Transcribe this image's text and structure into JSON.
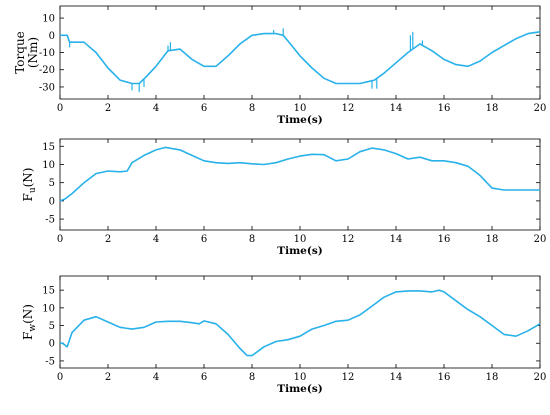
{
  "chart_data": [
    {
      "type": "line",
      "title": "",
      "xlabel": "Time(s)",
      "ylabel_lines": [
        "Torque",
        "(Nm)"
      ],
      "xlim": [
        0,
        20
      ],
      "ylim": [
        -37,
        17
      ],
      "xticks": [
        0,
        2,
        4,
        6,
        8,
        10,
        12,
        14,
        16,
        18,
        20
      ],
      "yticks": [
        10,
        0,
        -10,
        -20,
        -30
      ],
      "grid": false,
      "color": "#29b1e9",
      "series": [
        {
          "x": [
            0,
            0.3,
            0.4,
            1.0,
            1.5,
            2.0,
            2.5,
            3.0,
            3.3,
            3.6,
            4.0,
            4.5,
            5.0,
            5.5,
            6.0,
            6.5,
            7.0,
            7.5,
            8.0,
            8.5,
            9.0,
            9.3,
            9.6,
            10.0,
            10.5,
            11.0,
            11.5,
            12.0,
            12.5,
            12.8,
            13.1,
            13.5,
            14.0,
            14.5,
            15.0,
            15.5,
            16.0,
            16.5,
            17.0,
            17.5,
            18.0,
            18.5,
            19.0,
            19.5,
            20.0
          ],
          "values": [
            0,
            0,
            -4,
            -4,
            -10,
            -19,
            -26,
            -28,
            -28,
            -24,
            -18,
            -9,
            -8,
            -14,
            -18,
            -18,
            -12,
            -5,
            0,
            1,
            1,
            0,
            -5,
            -12,
            -19,
            -25,
            -28,
            -28,
            -28,
            -27,
            -26,
            -22,
            -16,
            -10,
            -5,
            -9,
            -14,
            -17,
            -18,
            -15,
            -10,
            -6,
            -2,
            1,
            2
          ]
        }
      ],
      "spikes": [
        [
          0.4,
          -7
        ],
        [
          3.0,
          -32
        ],
        [
          3.3,
          -33
        ],
        [
          3.5,
          -30
        ],
        [
          4.5,
          -6
        ],
        [
          4.6,
          -4
        ],
        [
          8.9,
          3
        ],
        [
          9.3,
          4
        ],
        [
          13.0,
          -31
        ],
        [
          13.2,
          -31
        ],
        [
          14.6,
          0
        ],
        [
          14.7,
          2
        ],
        [
          15.1,
          -3
        ]
      ]
    },
    {
      "type": "line",
      "title": "",
      "xlabel": "Time(s)",
      "ylabel_main": "F",
      "ylabel_sub": "u",
      "ylabel_unit": "(N)",
      "xlim": [
        0,
        20
      ],
      "ylim": [
        -8,
        17
      ],
      "xticks": [
        0,
        2,
        4,
        6,
        8,
        10,
        12,
        14,
        16,
        18,
        20
      ],
      "yticks": [
        15,
        10,
        5,
        0,
        -5
      ],
      "grid": false,
      "color": "#29b1e9",
      "series": [
        {
          "x": [
            0,
            0.2,
            0.5,
            1.0,
            1.5,
            2.0,
            2.5,
            2.8,
            3.0,
            3.5,
            4.0,
            4.4,
            5.0,
            5.5,
            6.0,
            6.5,
            7.0,
            7.5,
            8.0,
            8.5,
            9.0,
            9.5,
            10.0,
            10.5,
            11.0,
            11.5,
            12.0,
            12.5,
            13.0,
            13.5,
            14.0,
            14.5,
            15.0,
            15.5,
            16.0,
            16.5,
            17.0,
            17.5,
            18.0,
            18.5,
            19.0,
            19.5,
            20.0
          ],
          "values": [
            0,
            0.5,
            2,
            5,
            7.5,
            8.2,
            8,
            8.2,
            10.5,
            12.5,
            14,
            14.7,
            14,
            12.5,
            11,
            10.5,
            10.3,
            10.5,
            10.2,
            10,
            10.5,
            11.5,
            12.3,
            12.8,
            12.7,
            11,
            11.5,
            13.5,
            14.5,
            14,
            13,
            11.5,
            12,
            11,
            11,
            10.5,
            9.5,
            7,
            3.5,
            3,
            3,
            3,
            3
          ]
        }
      ]
    },
    {
      "type": "line",
      "title": "",
      "xlabel": "Time(s)",
      "ylabel_main": "F",
      "ylabel_sub": "w",
      "ylabel_unit": "(N)",
      "xlim": [
        0,
        20
      ],
      "ylim": [
        -7,
        19
      ],
      "xticks": [
        0,
        2,
        4,
        6,
        8,
        10,
        12,
        14,
        16,
        18,
        20
      ],
      "yticks": [
        15,
        10,
        5,
        0,
        -5
      ],
      "grid": false,
      "color": "#29b1e9",
      "series": [
        {
          "x": [
            0,
            0.1,
            0.3,
            0.5,
            1.0,
            1.5,
            2.0,
            2.5,
            3.0,
            3.5,
            4.0,
            4.5,
            5.0,
            5.5,
            5.8,
            6.0,
            6.5,
            7.0,
            7.5,
            7.8,
            8.0,
            8.5,
            9.0,
            9.5,
            10.0,
            10.5,
            11.0,
            11.5,
            12.0,
            12.5,
            13.0,
            13.5,
            14.0,
            14.5,
            15.0,
            15.5,
            15.8,
            16.0,
            16.5,
            17.0,
            17.5,
            18.0,
            18.5,
            19.0,
            19.5,
            20.0
          ],
          "values": [
            0,
            0,
            -1,
            3,
            6.5,
            7.5,
            6,
            4.5,
            4,
            4.5,
            6,
            6.2,
            6.2,
            5.8,
            5.5,
            6.3,
            5.5,
            2.5,
            -1.5,
            -3.5,
            -3.5,
            -1,
            0.5,
            1,
            2,
            4,
            5,
            6.2,
            6.5,
            8,
            10.5,
            13,
            14.5,
            14.8,
            14.8,
            14.5,
            15,
            14.5,
            12,
            9.5,
            7.5,
            5,
            2.5,
            2,
            3.5,
            5.5
          ]
        }
      ]
    }
  ]
}
